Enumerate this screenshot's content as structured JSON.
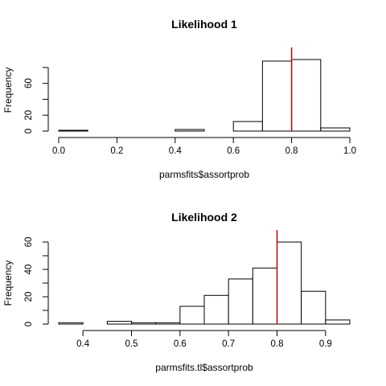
{
  "chart_data": [
    {
      "type": "bar",
      "title": "Likelihood 1",
      "xlabel": "parmsfits$assortprob",
      "ylabel": "Frequency",
      "bin_edges": [
        0.0,
        0.1,
        0.2,
        0.3,
        0.4,
        0.5,
        0.6,
        0.7,
        0.8,
        0.9,
        1.0
      ],
      "counts": [
        1,
        0,
        0,
        0,
        2,
        0,
        12,
        88,
        90,
        4
      ],
      "reference_line": 0.8,
      "reference_color": "#cc0000",
      "xlim": [
        0.0,
        1.0
      ],
      "ylim": [
        0,
        90
      ],
      "xticks": [
        0.0,
        0.2,
        0.4,
        0.6,
        0.8,
        1.0
      ],
      "xtick_labels": [
        "0.0",
        "0.2",
        "0.4",
        "0.6",
        "0.8",
        "1.0"
      ],
      "yticks": [
        0,
        20,
        40,
        60,
        80
      ],
      "ytick_labels": [
        "0",
        "20",
        "",
        "60",
        ""
      ]
    },
    {
      "type": "bar",
      "title": "Likelihood 2",
      "xlabel": "parmsfits.tl$assortprob",
      "ylabel": "Frequency",
      "bin_edges": [
        0.35,
        0.4,
        0.45,
        0.5,
        0.55,
        0.6,
        0.65,
        0.7,
        0.75,
        0.8,
        0.85,
        0.9,
        0.95
      ],
      "counts": [
        1,
        0,
        2,
        1,
        1,
        13,
        21,
        33,
        41,
        60,
        24,
        3
      ],
      "reference_line": 0.8,
      "reference_color": "#cc0000",
      "xlim": [
        0.35,
        0.95
      ],
      "ylim": [
        0,
        60
      ],
      "xticks": [
        0.4,
        0.5,
        0.6,
        0.7,
        0.8,
        0.9
      ],
      "xtick_labels": [
        "0.4",
        "0.5",
        "0.6",
        "0.7",
        "0.8",
        "0.9"
      ],
      "yticks": [
        0,
        10,
        20,
        30,
        40,
        50,
        60
      ],
      "ytick_labels": [
        "0",
        "",
        "20",
        "",
        "40",
        "",
        "60"
      ]
    }
  ]
}
